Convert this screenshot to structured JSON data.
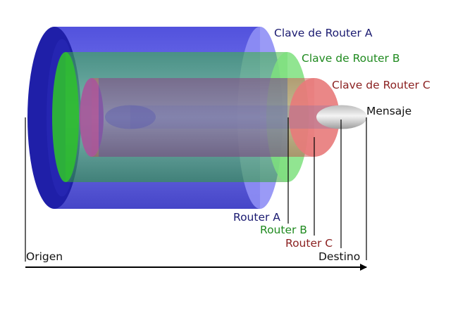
{
  "labels": {
    "key_a": "Clave de Router A",
    "key_b": "Clave de Router B",
    "key_c": "Clave de Router C",
    "message": "Mensaje",
    "router_a": "Router A",
    "router_b": "Router B",
    "router_c": "Router C",
    "origin": "Origen",
    "destination": "Destino"
  },
  "colors": {
    "layer_a": "#3a3ae0",
    "layer_b": "#4cd44c",
    "layer_c": "#e46a6a",
    "message": "#d8d8d8",
    "text_a": "#1a1a70",
    "text_b": "#1f8a1f",
    "text_c": "#8a1f1f",
    "text_default": "#111111"
  }
}
